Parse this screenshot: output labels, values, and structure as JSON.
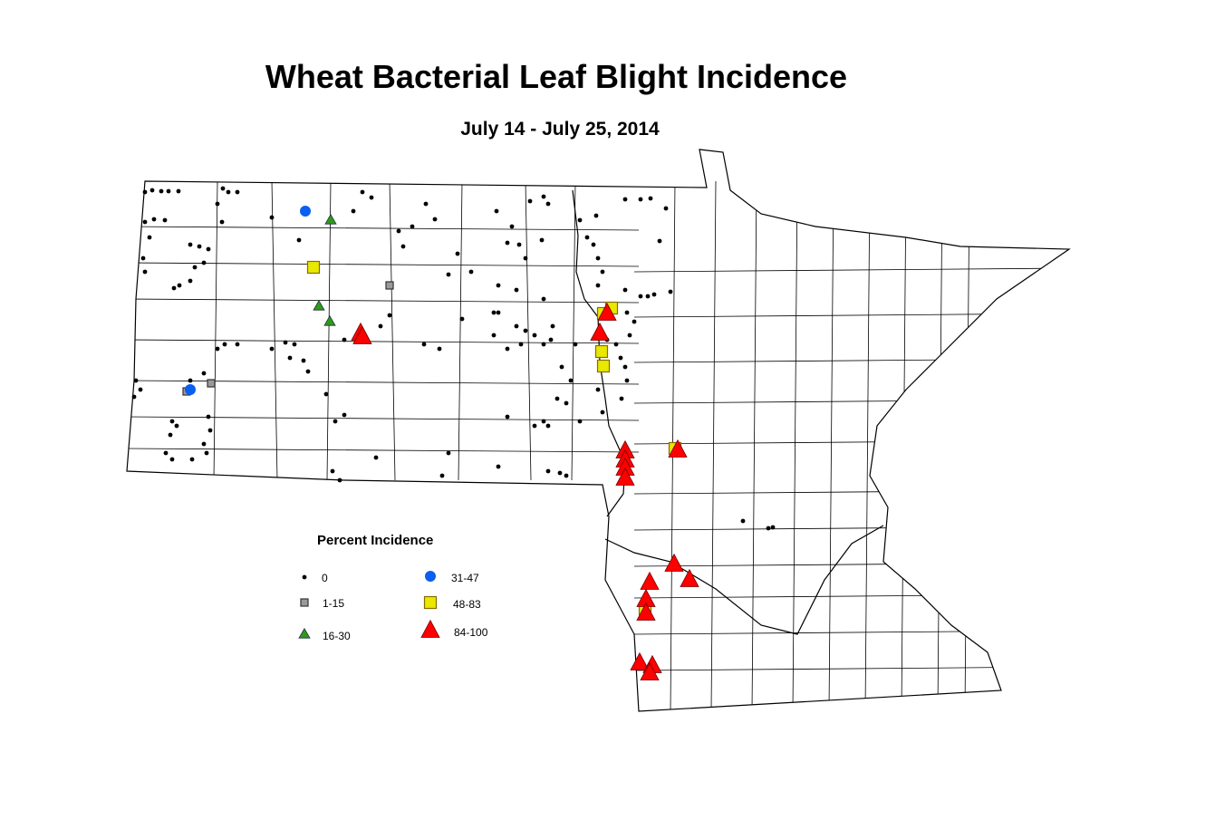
{
  "title": "Wheat Bacterial Leaf Blight Incidence",
  "subtitle": "July 14 - July 25, 2014",
  "legend": {
    "title": "Percent Incidence",
    "items": [
      {
        "label": "0",
        "shape": "dot",
        "color": "#000000"
      },
      {
        "label": "1-15",
        "shape": "square",
        "color": "#9a9a9a"
      },
      {
        "label": "16-30",
        "shape": "triangle",
        "color": "#2e9a1a"
      },
      {
        "label": "31-47",
        "shape": "circle",
        "color": "#0a5ff0"
      },
      {
        "label": "48-83",
        "shape": "square",
        "color": "#e8e800"
      },
      {
        "label": "84-100",
        "shape": "triangle",
        "color": "#ff0000"
      }
    ]
  }
}
